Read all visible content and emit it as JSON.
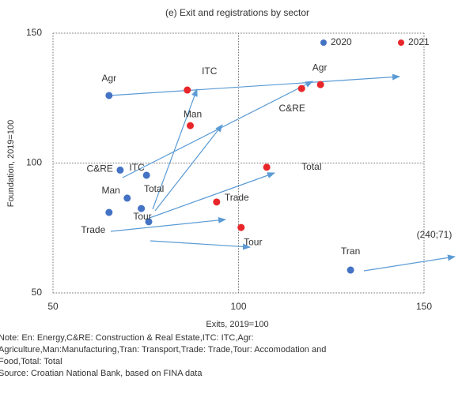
{
  "chart_data": {
    "type": "scatter",
    "title": "(e) Exit and registrations by sector",
    "x_label": "Exits, 2019=100",
    "y_label": "Foundation, 2019=100",
    "xlim": [
      50,
      150
    ],
    "ylim": [
      50,
      150
    ],
    "xticks": [
      50,
      100,
      150
    ],
    "yticks": [
      50,
      100,
      150
    ],
    "grid": true,
    "series": [
      {
        "name": "2020",
        "color": "#4472c4",
        "labels": [
          "Agr",
          "C&RE",
          "ITC",
          "Man",
          "Total",
          "Trade",
          "Tour",
          "Tran"
        ],
        "x": [
          65.1,
          68.1,
          75.2,
          70,
          73.8,
          65.1,
          75.8,
          130.2
        ],
        "values": [
          126,
          97.3,
          95.3,
          86.5,
          82.5,
          81,
          77.4,
          58.8
        ]
      },
      {
        "name": "2021",
        "color": "#e8262a",
        "labels": [
          "ITC",
          "Man",
          "Agr",
          "C&RE",
          "Total",
          "Trade",
          "Tour"
        ],
        "x": [
          86.2,
          87,
          122.1,
          117,
          107.6,
          94.1,
          100.7
        ],
        "values": [
          128.1,
          114.4,
          130.2,
          128.7,
          98.4,
          85,
          75.2
        ]
      }
    ],
    "annotation": "(240;71)",
    "notes": [
      "Note: En: Energy,C&RE: Construction & Real Estate,ITC: ITC,Agr:",
      "Agriculture,Man:Manufacturing,Tran: Transport,Trade: Trade,Tour: Accomodation and",
      "Food,Total: Total",
      "Source: Croatian National Bank, based on FINA data"
    ]
  }
}
